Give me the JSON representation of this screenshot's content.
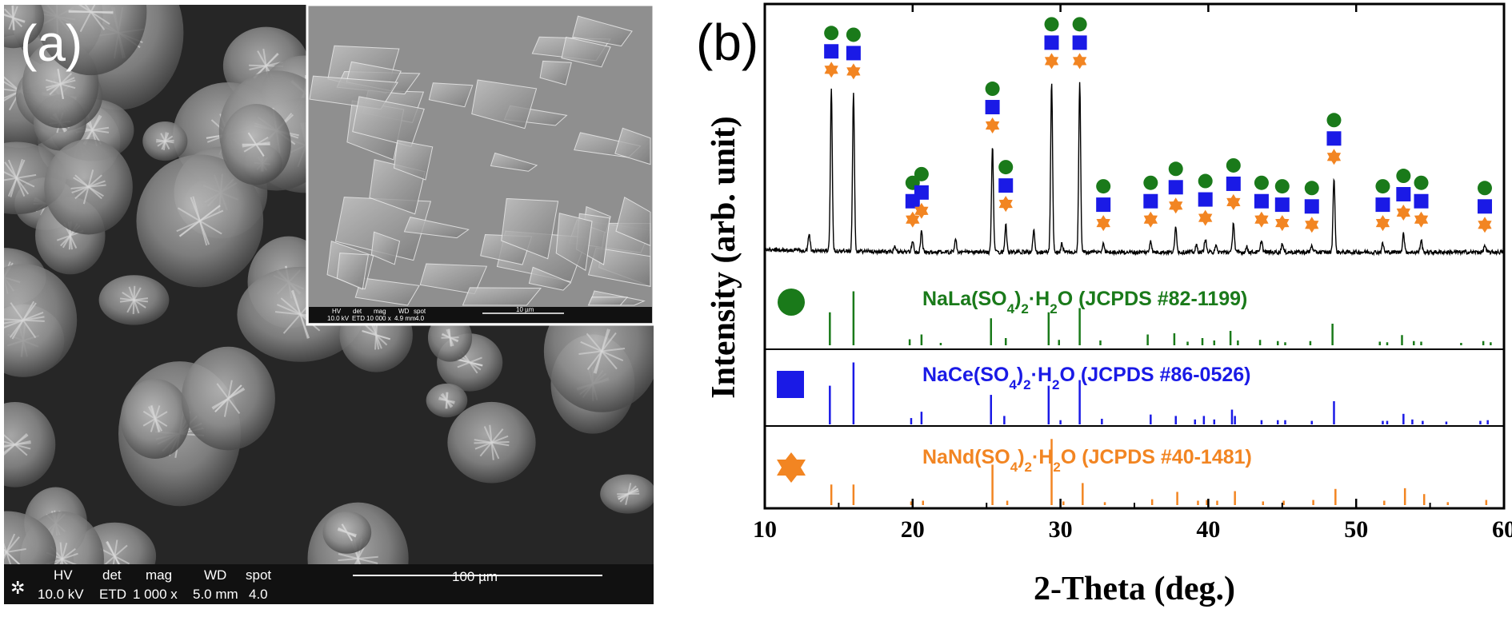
{
  "sem": {
    "main_label": "(a)",
    "main_bar": {
      "hv_h": "HV",
      "hv_v": "10.0 kV",
      "det_h": "det",
      "det_v": "ETD",
      "mag_h": "mag",
      "mag_v": "1 000 x",
      "wd_h": "WD",
      "wd_v": "5.0 mm",
      "spot_h": "spot",
      "spot_v": "4.0",
      "scale": "100 µm"
    },
    "inset_bar": {
      "hv_h": "HV",
      "hv_v": "10.0 kV",
      "det_h": "det",
      "det_v": "ETD",
      "mag_h": "mag",
      "mag_v": "10 000 x",
      "wd_h": "WD",
      "wd_v": "4.9 mm",
      "spot_h": "spot",
      "spot_v": "4.0",
      "scale": "10 µm"
    }
  },
  "colors": {
    "la": "#1a7a1a",
    "ce": "#1a1ae6",
    "nd": "#f28522"
  },
  "legend": {
    "la": {
      "icon": "circle-icon",
      "name": "NaLa(SO",
      "sub1": "4",
      "mid": ")",
      "sub2": "2",
      "end": "·H",
      "sub3": "2",
      "tail": "O (JCPDS #82-1199)"
    },
    "ce": {
      "icon": "square-icon",
      "name": "NaCe(SO",
      "sub1": "4",
      "mid": ")",
      "sub2": "2",
      "end": "·H",
      "sub3": "2",
      "tail": "O (JCPDS #86-0526)"
    },
    "nd": {
      "icon": "star-icon",
      "name": "NaNd(SO",
      "sub1": "4",
      "mid": ")",
      "sub2": "2",
      "end": "·H",
      "sub3": "2",
      "tail": "O (JCPDS #40-1481)"
    }
  },
  "chart_data": {
    "type": "line",
    "panel_label": "(b)",
    "xlabel": "2-Theta (deg.)",
    "ylabel": "Intensity (arb. unit)",
    "xlim": [
      10,
      60
    ],
    "xticks": [
      10,
      20,
      30,
      40,
      50,
      60
    ],
    "grid": false,
    "pattern_peaks": [
      {
        "x": 13.0,
        "h": 0.1
      },
      {
        "x": 14.5,
        "h": 0.93,
        "marks": [
          "la",
          "ce",
          "nd"
        ]
      },
      {
        "x": 16.0,
        "h": 0.92,
        "marks": [
          "la",
          "ce",
          "nd"
        ]
      },
      {
        "x": 18.8,
        "h": 0.03
      },
      {
        "x": 20.0,
        "h": 0.07,
        "marks": [
          "la",
          "ce",
          "nd"
        ]
      },
      {
        "x": 20.6,
        "h": 0.12,
        "marks": [
          "la",
          "ce",
          "nd"
        ]
      },
      {
        "x": 22.9,
        "h": 0.08
      },
      {
        "x": 25.4,
        "h": 0.61,
        "marks": [
          "la",
          "ce",
          "nd"
        ]
      },
      {
        "x": 26.3,
        "h": 0.16,
        "marks": [
          "la",
          "ce",
          "nd"
        ]
      },
      {
        "x": 28.2,
        "h": 0.13
      },
      {
        "x": 29.4,
        "h": 0.98,
        "marks": [
          "la",
          "ce",
          "nd"
        ]
      },
      {
        "x": 30.1,
        "h": 0.05
      },
      {
        "x": 31.3,
        "h": 0.98,
        "marks": [
          "la",
          "ce",
          "nd"
        ]
      },
      {
        "x": 32.9,
        "h": 0.05,
        "marks": [
          "la",
          "ce",
          "nd"
        ]
      },
      {
        "x": 36.1,
        "h": 0.07,
        "marks": [
          "la",
          "ce",
          "nd"
        ]
      },
      {
        "x": 37.8,
        "h": 0.15,
        "marks": [
          "la",
          "ce",
          "nd"
        ]
      },
      {
        "x": 39.2,
        "h": 0.04
      },
      {
        "x": 39.8,
        "h": 0.08,
        "marks": [
          "la",
          "ce",
          "nd"
        ]
      },
      {
        "x": 40.5,
        "h": 0.04
      },
      {
        "x": 41.7,
        "h": 0.17,
        "marks": [
          "la",
          "ce",
          "nd"
        ]
      },
      {
        "x": 42.6,
        "h": 0.03
      },
      {
        "x": 43.6,
        "h": 0.07,
        "marks": [
          "la",
          "ce",
          "nd"
        ]
      },
      {
        "x": 45.0,
        "h": 0.05,
        "marks": [
          "la",
          "ce",
          "nd"
        ]
      },
      {
        "x": 47.0,
        "h": 0.04,
        "marks": [
          "la",
          "ce",
          "nd"
        ]
      },
      {
        "x": 48.5,
        "h": 0.43,
        "marks": [
          "la",
          "ce",
          "nd"
        ]
      },
      {
        "x": 51.8,
        "h": 0.05,
        "marks": [
          "la",
          "ce",
          "nd"
        ]
      },
      {
        "x": 53.2,
        "h": 0.11,
        "marks": [
          "la",
          "ce",
          "nd"
        ]
      },
      {
        "x": 54.4,
        "h": 0.07,
        "marks": [
          "la",
          "ce",
          "nd"
        ]
      },
      {
        "x": 58.7,
        "h": 0.04,
        "marks": [
          "la",
          "ce",
          "nd"
        ]
      }
    ],
    "reference_series": [
      {
        "key": "la",
        "lines": [
          [
            14.4,
            0.55
          ],
          [
            16.0,
            0.9
          ],
          [
            19.8,
            0.1
          ],
          [
            20.6,
            0.18
          ],
          [
            21.9,
            0.04
          ],
          [
            25.3,
            0.45
          ],
          [
            26.3,
            0.12
          ],
          [
            29.2,
            0.55
          ],
          [
            29.9,
            0.09
          ],
          [
            31.3,
            0.62
          ],
          [
            32.7,
            0.08
          ],
          [
            35.9,
            0.18
          ],
          [
            37.7,
            0.2
          ],
          [
            38.6,
            0.06
          ],
          [
            39.6,
            0.12
          ],
          [
            40.4,
            0.08
          ],
          [
            41.5,
            0.24
          ],
          [
            42.0,
            0.08
          ],
          [
            43.5,
            0.09
          ],
          [
            44.7,
            0.07
          ],
          [
            45.2,
            0.05
          ],
          [
            46.9,
            0.07
          ],
          [
            48.4,
            0.36
          ],
          [
            51.6,
            0.06
          ],
          [
            52.1,
            0.05
          ],
          [
            53.1,
            0.17
          ],
          [
            53.9,
            0.07
          ],
          [
            54.4,
            0.06
          ],
          [
            57.1,
            0.04
          ],
          [
            58.6,
            0.07
          ],
          [
            59.1,
            0.05
          ]
        ]
      },
      {
        "key": "ce",
        "lines": [
          [
            14.4,
            0.55
          ],
          [
            16.0,
            0.88
          ],
          [
            19.9,
            0.09
          ],
          [
            20.6,
            0.18
          ],
          [
            25.3,
            0.42
          ],
          [
            26.2,
            0.12
          ],
          [
            29.2,
            0.55
          ],
          [
            30.0,
            0.06
          ],
          [
            31.3,
            0.63
          ],
          [
            32.8,
            0.08
          ],
          [
            36.1,
            0.14
          ],
          [
            37.8,
            0.12
          ],
          [
            39.1,
            0.07
          ],
          [
            39.7,
            0.12
          ],
          [
            40.4,
            0.07
          ],
          [
            41.6,
            0.21
          ],
          [
            41.8,
            0.12
          ],
          [
            43.6,
            0.06
          ],
          [
            44.7,
            0.06
          ],
          [
            45.2,
            0.06
          ],
          [
            47.0,
            0.05
          ],
          [
            48.5,
            0.33
          ],
          [
            51.8,
            0.05
          ],
          [
            52.1,
            0.05
          ],
          [
            53.2,
            0.15
          ],
          [
            53.8,
            0.07
          ],
          [
            54.5,
            0.05
          ],
          [
            56.1,
            0.04
          ],
          [
            58.4,
            0.05
          ],
          [
            58.9,
            0.06
          ]
        ]
      },
      {
        "key": "nd",
        "lines": [
          [
            14.5,
            0.28
          ],
          [
            16.0,
            0.28
          ],
          [
            19.9,
            0.05
          ],
          [
            20.7,
            0.06
          ],
          [
            25.4,
            0.55
          ],
          [
            26.4,
            0.06
          ],
          [
            29.4,
            0.9
          ],
          [
            30.2,
            0.05
          ],
          [
            31.5,
            0.3
          ],
          [
            33.0,
            0.04
          ],
          [
            36.2,
            0.08
          ],
          [
            37.9,
            0.18
          ],
          [
            39.3,
            0.06
          ],
          [
            39.9,
            0.07
          ],
          [
            40.6,
            0.06
          ],
          [
            41.8,
            0.19
          ],
          [
            43.7,
            0.05
          ],
          [
            45.1,
            0.06
          ],
          [
            47.1,
            0.07
          ],
          [
            48.6,
            0.22
          ],
          [
            51.9,
            0.06
          ],
          [
            53.3,
            0.23
          ],
          [
            54.6,
            0.15
          ],
          [
            56.2,
            0.04
          ],
          [
            58.8,
            0.07
          ]
        ]
      }
    ]
  }
}
